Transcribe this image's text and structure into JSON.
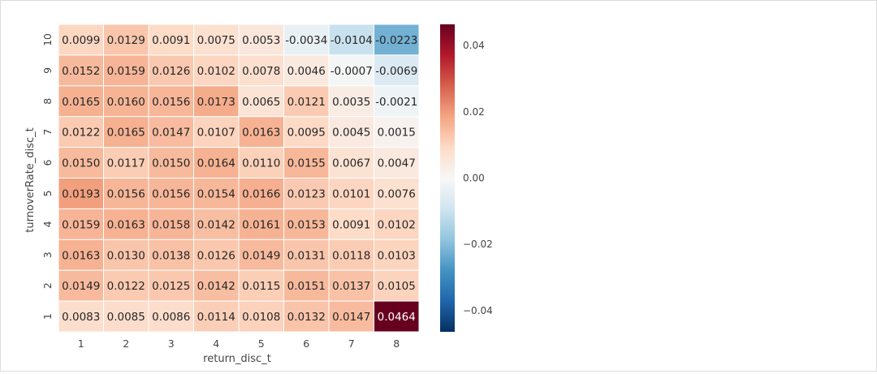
{
  "chart_data": {
    "type": "heatmap",
    "title": "",
    "xlabel": "return_disc_t",
    "ylabel": "turnoverRate_disc_t",
    "x_categories": [
      "1",
      "2",
      "3",
      "4",
      "5",
      "6",
      "7",
      "8"
    ],
    "y_categories": [
      "10",
      "9",
      "8",
      "7",
      "6",
      "5",
      "4",
      "3",
      "2",
      "1"
    ],
    "values": [
      [
        0.0099,
        0.0129,
        0.0091,
        0.0075,
        0.0053,
        -0.0034,
        -0.0104,
        -0.0223
      ],
      [
        0.0152,
        0.0159,
        0.0126,
        0.0102,
        0.0078,
        0.0046,
        -0.0007,
        -0.0069
      ],
      [
        0.0165,
        0.016,
        0.0156,
        0.0173,
        0.0065,
        0.0121,
        0.0035,
        -0.0021
      ],
      [
        0.0122,
        0.0165,
        0.0147,
        0.0107,
        0.0163,
        0.0095,
        0.0045,
        0.0015
      ],
      [
        0.015,
        0.0117,
        0.015,
        0.0164,
        0.011,
        0.0155,
        0.0067,
        0.0047
      ],
      [
        0.0193,
        0.0156,
        0.0156,
        0.0154,
        0.0166,
        0.0123,
        0.0101,
        0.0076
      ],
      [
        0.0159,
        0.0163,
        0.0158,
        0.0142,
        0.0161,
        0.0153,
        0.0091,
        0.0102
      ],
      [
        0.0163,
        0.013,
        0.0138,
        0.0126,
        0.0149,
        0.0131,
        0.0118,
        0.0103
      ],
      [
        0.0149,
        0.0122,
        0.0125,
        0.0142,
        0.0115,
        0.0151,
        0.0137,
        0.0105
      ],
      [
        0.0083,
        0.0085,
        0.0086,
        0.0114,
        0.0108,
        0.0132,
        0.0147,
        0.0464
      ]
    ],
    "colorbar": {
      "colormap": "RdBu_r",
      "vmin": -0.0464,
      "vmax": 0.0464,
      "ticks": [
        0.04,
        0.02,
        0.0,
        -0.02,
        -0.04
      ],
      "tick_labels": [
        "0.04",
        "0.02",
        "0.00",
        "−0.02",
        "−0.04"
      ]
    },
    "grid": false,
    "cell_border_color": "#ffffff"
  }
}
